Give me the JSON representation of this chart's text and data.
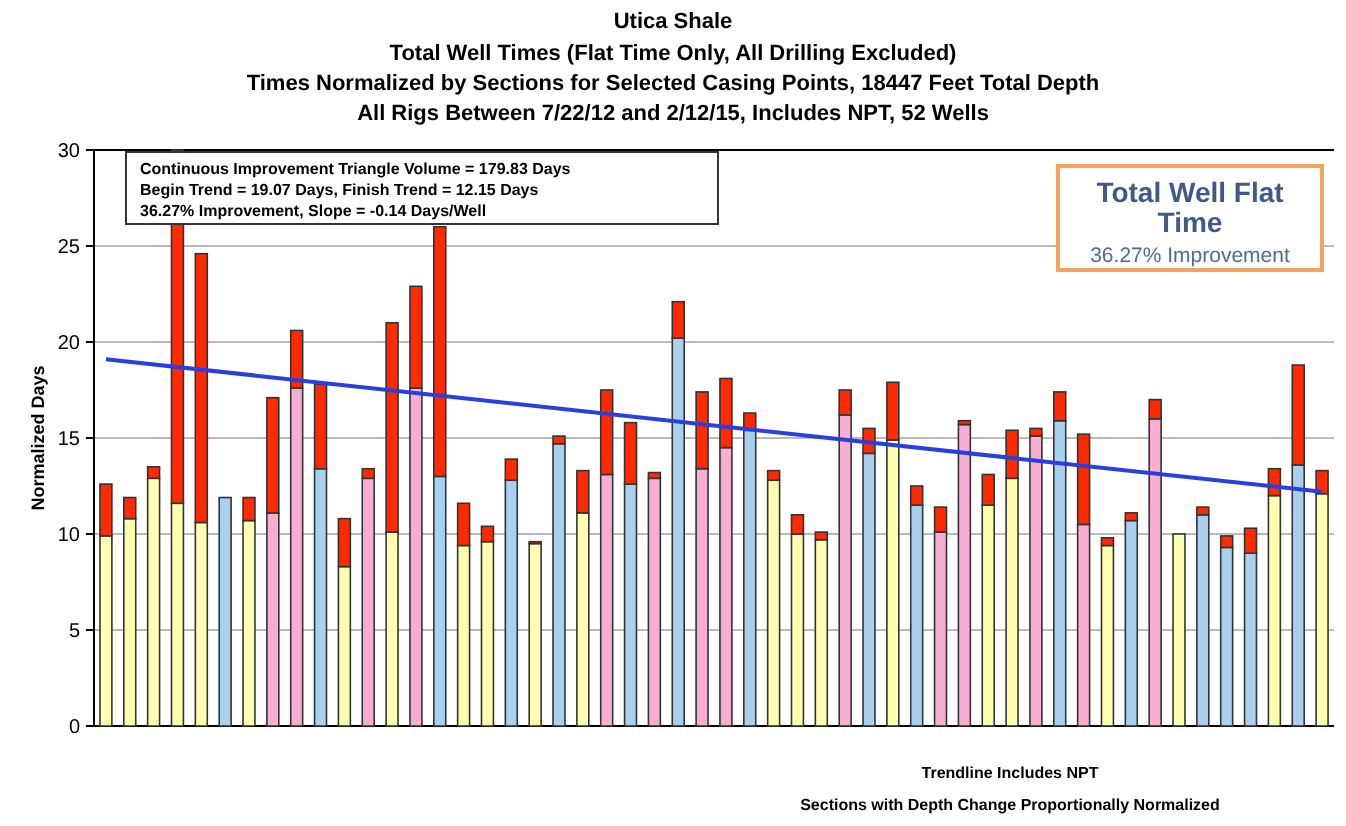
{
  "chart_data": {
    "type": "bar",
    "stacked": true,
    "title": "Utica Shale",
    "subtitle": "Total Well Times (Flat Time Only, All Drilling Excluded)\nTimes Normalized by Sections for Selected Casing Points, 18447 Feet Total Depth\nAll Rigs Between 7/22/12 and 2/12/15, Includes NPT, 52 Wells",
    "ylabel": "Normalized Days",
    "categories": [
      null,
      null,
      null,
      null,
      null,
      null,
      null,
      null,
      null,
      null,
      null,
      null,
      null,
      null,
      null,
      null,
      null,
      null,
      null,
      null,
      null,
      null,
      null,
      null,
      null,
      null,
      null,
      null,
      null,
      null,
      null,
      null,
      null,
      null,
      null,
      null,
      null,
      null,
      null,
      null,
      null,
      null,
      null,
      null,
      null,
      null,
      null,
      null,
      null,
      null,
      null,
      null
    ],
    "series": [
      {
        "values": [
          9.9,
          10.8,
          12.9,
          11.6,
          10.6,
          11.9,
          10.7,
          11.1,
          17.6,
          13.4,
          8.3,
          12.9,
          10.1,
          17.6,
          13.0,
          9.4,
          9.6,
          12.8,
          9.5,
          14.7,
          11.1,
          13.1,
          12.6,
          12.9,
          20.2,
          13.4,
          14.5,
          15.4,
          12.8,
          10.0,
          9.7,
          16.2,
          14.2,
          14.9,
          11.5,
          10.1,
          15.7,
          11.5,
          12.9,
          15.1,
          15.9,
          10.5,
          9.4,
          10.7,
          16.0,
          10.0,
          11.0,
          9.3,
          9.0,
          12.0,
          13.6,
          12.1
        ],
        "colors": [
          "#ffffb0",
          "#ffffb0",
          "#ffffb0",
          "#ffffb0",
          "#ffffb0",
          "#a8d0f0",
          "#ffffb0",
          "#f8aed0",
          "#f8aed0",
          "#a8d0f0",
          "#ffffb0",
          "#f8aed0",
          "#ffffb0",
          "#f8aed0",
          "#a8d0f0",
          "#ffffb0",
          "#ffffb0",
          "#a8d0f0",
          "#ffffb0",
          "#a8d0f0",
          "#ffffb0",
          "#f8aed0",
          "#a8d0f0",
          "#f8aed0",
          "#a8d0f0",
          "#f8aed0",
          "#f8aed0",
          "#a8d0f0",
          "#ffffb0",
          "#ffffb0",
          "#ffffb0",
          "#f8aed0",
          "#a8d0f0",
          "#ffffb0",
          "#a8d0f0",
          "#f8aed0",
          "#f8aed0",
          "#ffffb0",
          "#ffffb0",
          "#f8aed0",
          "#a8d0f0",
          "#f8aed0",
          "#ffffb0",
          "#a8d0f0",
          "#f8aed0",
          "#ffffb0",
          "#a8d0f0",
          "#a8d0f0",
          "#a8d0f0",
          "#ffffb0",
          "#a8d0f0",
          "#ffffb0"
        ]
      },
      {
        "color": "#ff2a00",
        "values": [
          2.7,
          1.1,
          0.6,
          18.4,
          14.0,
          0,
          1.2,
          6.0,
          3.0,
          4.4,
          2.5,
          0.5,
          10.9,
          5.3,
          13.0,
          2.2,
          0.8,
          1.1,
          0.1,
          0.4,
          2.2,
          4.4,
          3.2,
          0.3,
          1.9,
          4.0,
          3.6,
          0.9,
          0.5,
          1.0,
          0.4,
          1.3,
          1.3,
          3.0,
          1.0,
          1.3,
          0.2,
          1.6,
          2.5,
          0.4,
          1.5,
          4.7,
          0.4,
          0.4,
          1.0,
          0,
          0.4,
          0.6,
          1.3,
          1.4,
          5.2,
          1.2
        ]
      },
      {
        "type": "line",
        "color": "#2a3fe0",
        "values": [
          19.1,
          null,
          null,
          null,
          null,
          null,
          null,
          null,
          null,
          null,
          null,
          null,
          null,
          null,
          null,
          null,
          null,
          null,
          null,
          null,
          null,
          null,
          null,
          null,
          null,
          null,
          null,
          null,
          null,
          null,
          null,
          null,
          null,
          null,
          null,
          null,
          null,
          null,
          null,
          null,
          null,
          null,
          null,
          null,
          null,
          null,
          null,
          null,
          null,
          null,
          null,
          12.2
        ]
      }
    ],
    "ylim": [
      0,
      30
    ],
    "yticks": [
      0,
      5,
      10,
      15,
      20,
      25,
      30
    ],
    "grid": "y",
    "annotations": [
      "Continuous Improvement Triangle Volume = 179.83 Days",
      "Begin Trend = 19.07 Days, Finish Trend = 12.15 Days",
      "36.27% Improvement, Slope = -0.14 Days/Well",
      "Total Well Flat Time",
      "36.27% Improvement",
      "Trendline Includes NPT",
      "Sections with Depth Change Proportionally Normalized"
    ]
  }
}
